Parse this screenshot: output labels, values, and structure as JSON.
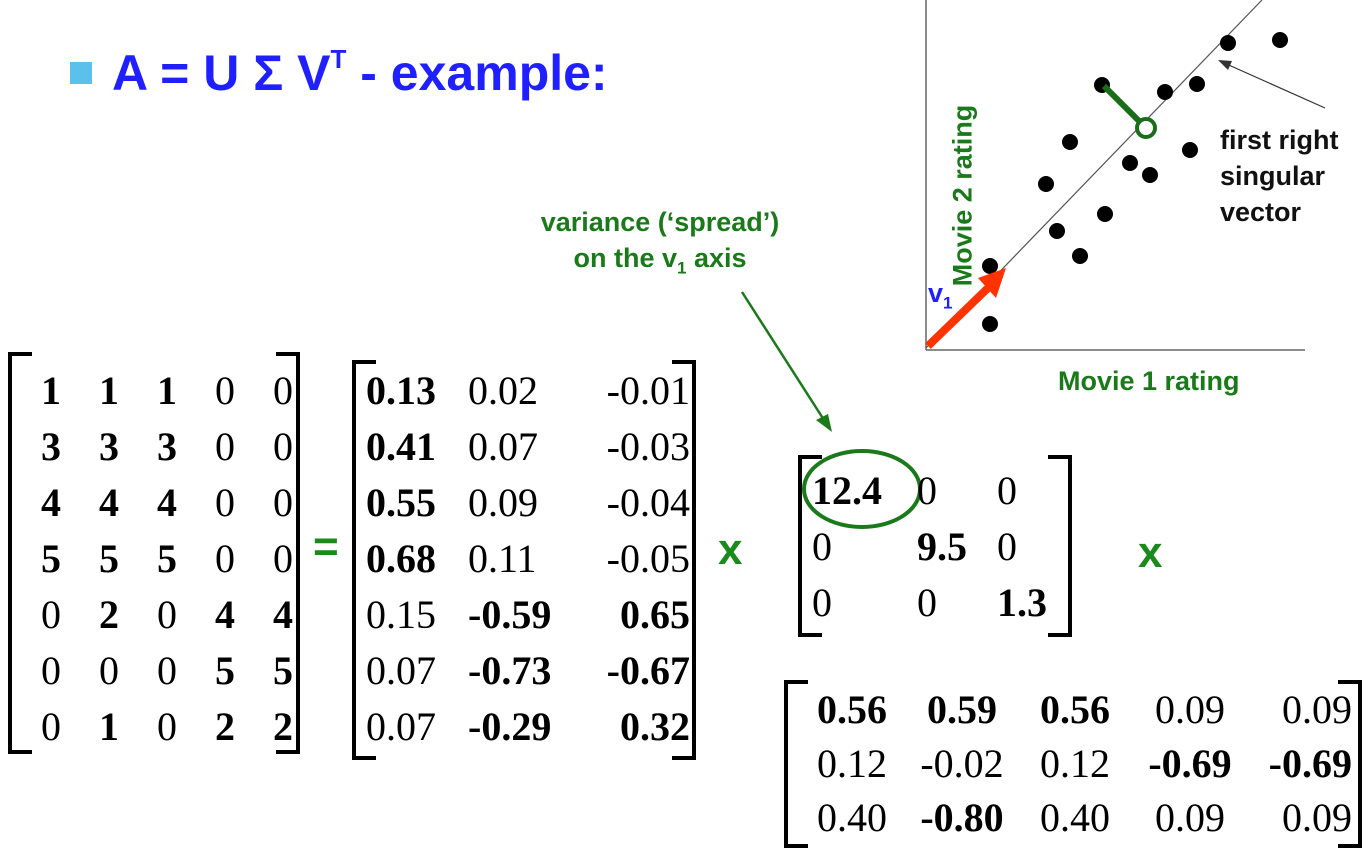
{
  "title": {
    "main": "A = U Σ V",
    "superscript": "T",
    "suffix": " - example:"
  },
  "operators": {
    "equals": "=",
    "times1": "x",
    "times2": "x"
  },
  "annotations": {
    "variance_line1": "variance (‘spread’)",
    "variance_line2_pre": "on the v",
    "variance_line2_sub": "1",
    "variance_line2_post": " axis",
    "first_right_line1": "first right",
    "first_right_line2": "singular",
    "first_right_line3": "vector"
  },
  "plot": {
    "xlabel": "Movie 1 rating",
    "ylabel": "Movie 2 rating",
    "v1_label": "v",
    "v1_sub": "1",
    "points": [
      [
        1228,
        43
      ],
      [
        1280,
        40
      ],
      [
        1197,
        84
      ],
      [
        1165,
        92
      ],
      [
        1102,
        85
      ],
      [
        1070,
        142
      ],
      [
        1046,
        184
      ],
      [
        1130,
        163
      ],
      [
        1150,
        175
      ],
      [
        1190,
        150
      ],
      [
        1105,
        214
      ],
      [
        1057,
        231
      ],
      [
        1080,
        256
      ],
      [
        990,
        266
      ],
      [
        990,
        324
      ]
    ]
  },
  "matrix_A": [
    [
      {
        "v": "1",
        "b": true
      },
      {
        "v": "1",
        "b": true
      },
      {
        "v": "1",
        "b": true
      },
      {
        "v": "0",
        "b": false
      },
      {
        "v": "0",
        "b": false
      }
    ],
    [
      {
        "v": "3",
        "b": true
      },
      {
        "v": "3",
        "b": true
      },
      {
        "v": "3",
        "b": true
      },
      {
        "v": "0",
        "b": false
      },
      {
        "v": "0",
        "b": false
      }
    ],
    [
      {
        "v": "4",
        "b": true
      },
      {
        "v": "4",
        "b": true
      },
      {
        "v": "4",
        "b": true
      },
      {
        "v": "0",
        "b": false
      },
      {
        "v": "0",
        "b": false
      }
    ],
    [
      {
        "v": "5",
        "b": true
      },
      {
        "v": "5",
        "b": true
      },
      {
        "v": "5",
        "b": true
      },
      {
        "v": "0",
        "b": false
      },
      {
        "v": "0",
        "b": false
      }
    ],
    [
      {
        "v": "0",
        "b": false
      },
      {
        "v": "2",
        "b": true
      },
      {
        "v": "0",
        "b": false
      },
      {
        "v": "4",
        "b": true
      },
      {
        "v": "4",
        "b": true
      }
    ],
    [
      {
        "v": "0",
        "b": false
      },
      {
        "v": "0",
        "b": false
      },
      {
        "v": "0",
        "b": false
      },
      {
        "v": "5",
        "b": true
      },
      {
        "v": "5",
        "b": true
      }
    ],
    [
      {
        "v": "0",
        "b": false
      },
      {
        "v": "1",
        "b": true
      },
      {
        "v": "0",
        "b": false
      },
      {
        "v": "2",
        "b": true
      },
      {
        "v": "2",
        "b": true
      }
    ]
  ],
  "matrix_U": [
    [
      {
        "v": "0.13",
        "b": true
      },
      {
        "v": "0.02",
        "b": false
      },
      {
        "v": "-0.01",
        "b": false
      }
    ],
    [
      {
        "v": "0.41",
        "b": true
      },
      {
        "v": "0.07",
        "b": false
      },
      {
        "v": "-0.03",
        "b": false
      }
    ],
    [
      {
        "v": "0.55",
        "b": true
      },
      {
        "v": "0.09",
        "b": false
      },
      {
        "v": "-0.04",
        "b": false
      }
    ],
    [
      {
        "v": "0.68",
        "b": true
      },
      {
        "v": "0.11",
        "b": false
      },
      {
        "v": "-0.05",
        "b": false
      }
    ],
    [
      {
        "v": "0.15",
        "b": false
      },
      {
        "v": "-0.59",
        "b": true
      },
      {
        "v": "0.65",
        "b": true
      }
    ],
    [
      {
        "v": "0.07",
        "b": false
      },
      {
        "v": "-0.73",
        "b": true
      },
      {
        "v": "-0.67",
        "b": true
      }
    ],
    [
      {
        "v": "0.07",
        "b": false
      },
      {
        "v": "-0.29",
        "b": true
      },
      {
        "v": "0.32",
        "b": true
      }
    ]
  ],
  "matrix_S": [
    [
      {
        "v": "12.4",
        "b": true
      },
      {
        "v": "0",
        "b": false
      },
      {
        "v": "0",
        "b": false
      }
    ],
    [
      {
        "v": "0",
        "b": false
      },
      {
        "v": "9.5",
        "b": true
      },
      {
        "v": "0",
        "b": false
      }
    ],
    [
      {
        "v": "0",
        "b": false
      },
      {
        "v": "0",
        "b": false
      },
      {
        "v": "1.3",
        "b": true
      }
    ]
  ],
  "matrix_VT": [
    [
      {
        "v": "0.56",
        "b": true
      },
      {
        "v": "0.59",
        "b": true
      },
      {
        "v": "0.56",
        "b": true
      },
      {
        "v": "0.09",
        "b": false
      },
      {
        "v": "0.09",
        "b": false
      }
    ],
    [
      {
        "v": "0.12",
        "b": false
      },
      {
        "v": "-0.02",
        "b": false
      },
      {
        "v": "0.12",
        "b": false
      },
      {
        "v": "-0.69",
        "b": true
      },
      {
        "v": "-0.69",
        "b": true
      }
    ],
    [
      {
        "v": "0.40",
        "b": false
      },
      {
        "v": "-0.80",
        "b": true
      },
      {
        "v": "0.40",
        "b": false
      },
      {
        "v": "0.09",
        "b": false
      },
      {
        "v": "0.09",
        "b": false
      }
    ]
  ],
  "colors": {
    "title": "#1f1fff",
    "bullet": "#5bc0eb",
    "green": "#1a7a1a",
    "arrow": "#ff3300",
    "v1": "#1f1fff"
  }
}
